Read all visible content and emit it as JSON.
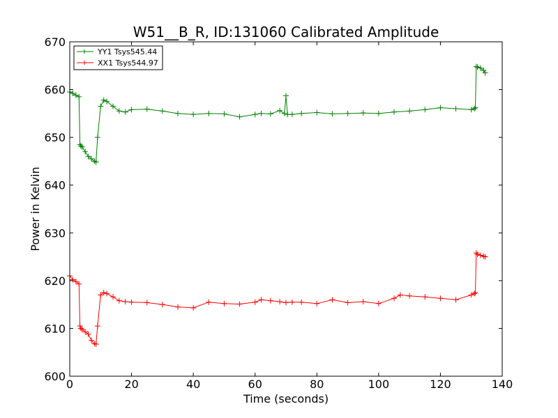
{
  "chart_data": {
    "type": "line",
    "title": "W51__B_R, ID:131060 Calibrated Amplitude",
    "xlabel": "Time (seconds)",
    "ylabel": "Power in Kelvin",
    "xlim": [
      0,
      140
    ],
    "ylim": [
      600,
      670
    ],
    "xticks": [
      "0",
      "20",
      "40",
      "60",
      "80",
      "100",
      "120",
      "140"
    ],
    "yticks": [
      "600",
      "610",
      "620",
      "630",
      "640",
      "650",
      "660",
      "670"
    ],
    "grid": false,
    "legend_position": "top-left",
    "marker": "plus",
    "series": [
      {
        "name": "YY1 Tsys545.44",
        "color": "#008000",
        "x": [
          0,
          1,
          2,
          3,
          3.3,
          3.6,
          4,
          5,
          6,
          7,
          8,
          8.5,
          9,
          10,
          11,
          12,
          14,
          16,
          18,
          20,
          25,
          30,
          35,
          40,
          45,
          50,
          55,
          60,
          62,
          65,
          68,
          69.5,
          70,
          70.5,
          72,
          75,
          80,
          85,
          90,
          95,
          100,
          105,
          110,
          115,
          120,
          125,
          130,
          131,
          131.3,
          131.6,
          132,
          133,
          134,
          134.5
        ],
        "y": [
          659.5,
          659.2,
          658.8,
          658.5,
          648.5,
          648.2,
          648.0,
          647.0,
          646.0,
          645.5,
          645.0,
          644.8,
          650.0,
          656.5,
          657.8,
          657.5,
          656.5,
          655.5,
          655.3,
          655.8,
          655.9,
          655.5,
          655.0,
          654.8,
          655.0,
          654.9,
          654.3,
          654.8,
          655.0,
          654.9,
          655.6,
          655.0,
          658.7,
          654.8,
          654.8,
          655.0,
          655.2,
          654.9,
          655.0,
          655.1,
          655.0,
          655.3,
          655.5,
          655.8,
          656.2,
          656.0,
          655.8,
          656.0,
          656.2,
          664.8,
          664.7,
          664.5,
          664.0,
          663.5
        ]
      },
      {
        "name": "XX1 Tsys544.97",
        "color": "#ff0000",
        "x": [
          0,
          1,
          2,
          3,
          3.3,
          3.6,
          4,
          5,
          6,
          7,
          8,
          8.5,
          9,
          10,
          11,
          12,
          14,
          16,
          18,
          20,
          25,
          30,
          35,
          40,
          45,
          50,
          55,
          60,
          62,
          65,
          68,
          70,
          72,
          75,
          80,
          85,
          90,
          95,
          100,
          105,
          107,
          110,
          115,
          120,
          125,
          130,
          131,
          131.3,
          131.6,
          132,
          133,
          134,
          134.5
        ],
        "y": [
          621.0,
          620.2,
          619.8,
          619.3,
          610.5,
          610.0,
          609.8,
          609.3,
          608.8,
          607.5,
          606.8,
          606.7,
          610.5,
          617.0,
          617.5,
          617.3,
          616.6,
          615.8,
          615.6,
          615.5,
          615.4,
          615.0,
          614.5,
          614.3,
          615.5,
          615.2,
          615.1,
          615.5,
          616.0,
          615.8,
          615.6,
          615.4,
          615.5,
          615.5,
          615.2,
          616.0,
          615.4,
          615.6,
          615.2,
          616.3,
          617.0,
          616.8,
          616.6,
          616.3,
          616.0,
          617.0,
          617.3,
          617.5,
          625.8,
          625.5,
          625.3,
          625.1,
          625.0
        ]
      }
    ]
  }
}
